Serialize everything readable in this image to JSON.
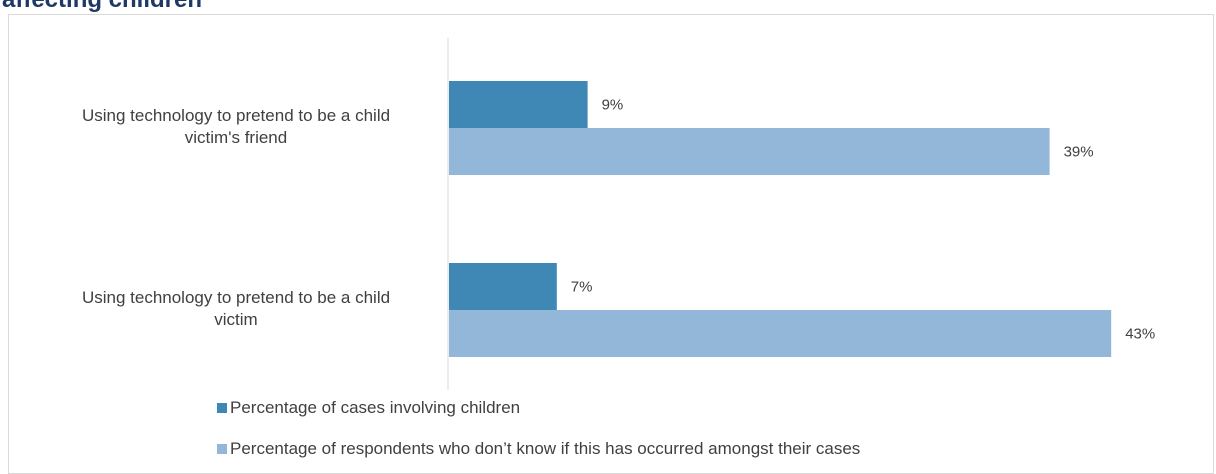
{
  "title": "affecting children",
  "chart_data": {
    "type": "bar",
    "orientation": "horizontal",
    "categories": [
      [
        "Using technology to pretend to be a child",
        "victim's friend"
      ],
      [
        "Using technology to pretend to be a child",
        "victim"
      ]
    ],
    "series": [
      {
        "name": "Percentage of cases involving children",
        "values": [
          9,
          7
        ],
        "labels": [
          "9%",
          "7%"
        ],
        "color": "#3f87b4"
      },
      {
        "name": "Percentage of respondents who don’t know if this has occurred amongst their cases",
        "values": [
          39,
          43
        ],
        "labels": [
          "39%",
          "43%"
        ],
        "color": "#92b7d8"
      }
    ],
    "xlim": [
      0,
      50
    ],
    "grid": false,
    "legend_position": "bottom"
  }
}
